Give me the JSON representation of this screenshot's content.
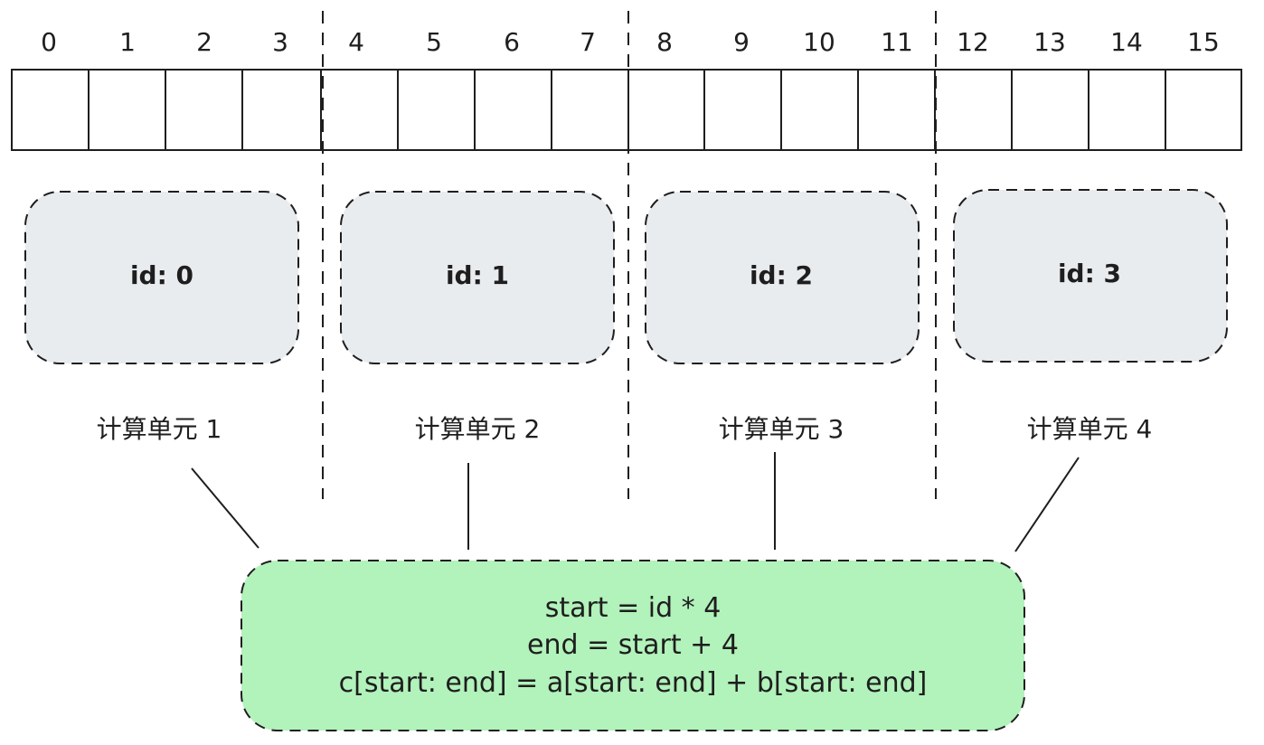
{
  "array": {
    "indices": [
      "0",
      "1",
      "2",
      "3",
      "4",
      "5",
      "6",
      "7",
      "8",
      "9",
      "10",
      "11",
      "12",
      "13",
      "14",
      "15"
    ]
  },
  "units": [
    {
      "id_label": "id: 0",
      "name": "计算单元 1"
    },
    {
      "id_label": "id: 1",
      "name": "计算单元 2"
    },
    {
      "id_label": "id: 2",
      "name": "计算单元 3"
    },
    {
      "id_label": "id: 3",
      "name": "计算单元 4"
    }
  ],
  "code": {
    "lines": [
      "start = id * 4",
      "end = start + 4",
      "c[start: end] = a[start: end] + b[start: end]"
    ]
  },
  "colors": {
    "unit_fill": "#e9ecef",
    "code_fill": "#b2f2bb",
    "stroke": "#1e1e1e"
  }
}
